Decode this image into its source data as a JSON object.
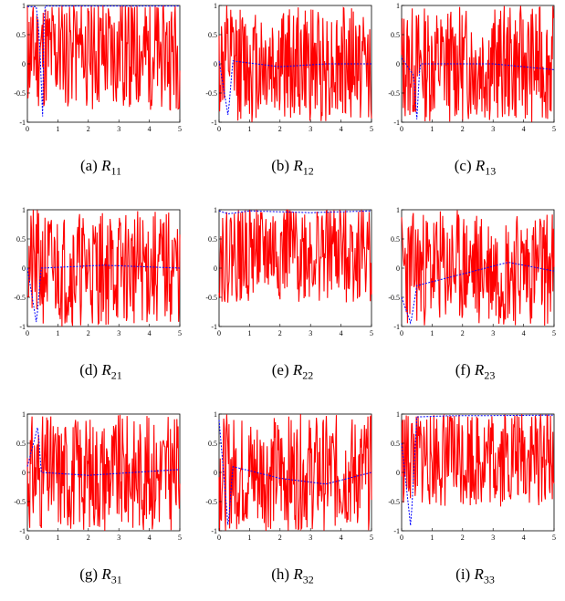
{
  "chart_data": [
    {
      "id": "a",
      "type": "line",
      "caption_label": "(a)",
      "caption_var": "R",
      "caption_sub": "11",
      "x_ticks": [
        "0",
        "1",
        "2",
        "3",
        "4",
        "5"
      ],
      "y_ticks": [
        "-1",
        "-0.5",
        "0",
        "0.5",
        "1"
      ],
      "xlim": [
        0,
        5
      ],
      "ylim": [
        -1,
        1
      ],
      "series": [
        {
          "color": "#ff0000",
          "style": "solid",
          "mean": 0.2,
          "amp": 1.0,
          "seed": 11
        },
        {
          "color": "#0000ff",
          "style": "dashed",
          "baseline": [
            [
              0,
              0.98
            ],
            [
              0.3,
              0.98
            ],
            [
              0.4,
              0.4
            ],
            [
              0.5,
              -0.9
            ],
            [
              0.55,
              0.99
            ],
            [
              5,
              0.99
            ]
          ]
        }
      ]
    },
    {
      "id": "b",
      "type": "line",
      "caption_label": "(b)",
      "caption_var": "R",
      "caption_sub": "12",
      "x_ticks": [
        "0",
        "1",
        "2",
        "3",
        "4",
        "5"
      ],
      "y_ticks": [
        "-1",
        "-0.5",
        "0",
        "0.5",
        "1"
      ],
      "xlim": [
        0,
        5
      ],
      "ylim": [
        -1,
        1
      ],
      "series": [
        {
          "color": "#ff0000",
          "style": "solid",
          "mean": 0.0,
          "amp": 1.0,
          "seed": 12
        },
        {
          "color": "#0000ff",
          "style": "dashed",
          "baseline": [
            [
              0,
              0.05
            ],
            [
              0.3,
              -0.9
            ],
            [
              0.45,
              0.05
            ],
            [
              2,
              -0.05
            ],
            [
              3.5,
              0.0
            ],
            [
              5,
              0.0
            ]
          ]
        }
      ]
    },
    {
      "id": "c",
      "type": "line",
      "caption_label": "(c)",
      "caption_var": "R",
      "caption_sub": "13",
      "x_ticks": [
        "0",
        "1",
        "2",
        "3",
        "4",
        "5"
      ],
      "y_ticks": [
        "-1",
        "-0.5",
        "0",
        "0.5",
        "1"
      ],
      "xlim": [
        0,
        5
      ],
      "ylim": [
        -1,
        1
      ],
      "series": [
        {
          "color": "#ff0000",
          "style": "solid",
          "mean": 0.0,
          "amp": 1.0,
          "seed": 13
        },
        {
          "color": "#0000ff",
          "style": "dashed",
          "baseline": [
            [
              0,
              0.1
            ],
            [
              0.4,
              -0.2
            ],
            [
              0.5,
              -0.95
            ],
            [
              0.6,
              0.0
            ],
            [
              3,
              0.0
            ],
            [
              5,
              -0.1
            ]
          ]
        }
      ]
    },
    {
      "id": "d",
      "type": "line",
      "caption_label": "(d)",
      "caption_var": "R",
      "caption_sub": "21",
      "x_ticks": [
        "0",
        "1",
        "2",
        "3",
        "4",
        "5"
      ],
      "y_ticks": [
        "-1",
        "-0.5",
        "0",
        "0.5",
        "1"
      ],
      "xlim": [
        0,
        5
      ],
      "ylim": [
        -1,
        1
      ],
      "series": [
        {
          "color": "#ff0000",
          "style": "solid",
          "mean": 0.0,
          "amp": 1.0,
          "seed": 21
        },
        {
          "color": "#0000ff",
          "style": "dashed",
          "baseline": [
            [
              0,
              0.0
            ],
            [
              0.3,
              -0.95
            ],
            [
              0.45,
              0.0
            ],
            [
              2.5,
              0.05
            ],
            [
              5,
              0.0
            ]
          ]
        }
      ]
    },
    {
      "id": "e",
      "type": "line",
      "caption_label": "(e)",
      "caption_var": "R",
      "caption_sub": "22",
      "x_ticks": [
        "0",
        "1",
        "2",
        "3",
        "4",
        "5"
      ],
      "y_ticks": [
        "-1",
        "-0.5",
        "0",
        "0.5",
        "1"
      ],
      "xlim": [
        0,
        5
      ],
      "ylim": [
        -1,
        1
      ],
      "series": [
        {
          "color": "#ff0000",
          "style": "solid",
          "mean": 0.3,
          "amp": 0.9,
          "seed": 22
        },
        {
          "color": "#0000ff",
          "style": "dashed",
          "baseline": [
            [
              0,
              0.98
            ],
            [
              0.3,
              0.93
            ],
            [
              1,
              0.98
            ],
            [
              3,
              0.95
            ],
            [
              5,
              0.98
            ]
          ]
        }
      ]
    },
    {
      "id": "f",
      "type": "line",
      "caption_label": "(f)",
      "caption_var": "R",
      "caption_sub": "23",
      "x_ticks": [
        "0",
        "1",
        "2",
        "3",
        "4",
        "5"
      ],
      "y_ticks": [
        "-1",
        "-0.5",
        "0",
        "0.5",
        "1"
      ],
      "xlim": [
        0,
        5
      ],
      "ylim": [
        -1,
        1
      ],
      "series": [
        {
          "color": "#ff0000",
          "style": "solid",
          "mean": 0.0,
          "amp": 1.0,
          "seed": 23
        },
        {
          "color": "#0000ff",
          "style": "dashed",
          "baseline": [
            [
              0,
              -0.5
            ],
            [
              0.3,
              -0.95
            ],
            [
              0.5,
              -0.3
            ],
            [
              2,
              -0.1
            ],
            [
              3.5,
              0.1
            ],
            [
              5,
              -0.05
            ]
          ]
        }
      ]
    },
    {
      "id": "g",
      "type": "line",
      "caption_label": "(g)",
      "caption_var": "R",
      "caption_sub": "31",
      "x_ticks": [
        "0",
        "1",
        "2",
        "3",
        "4",
        "5"
      ],
      "y_ticks": [
        "-1",
        "-0.5",
        "0",
        "0.5",
        "1"
      ],
      "xlim": [
        0,
        5
      ],
      "ylim": [
        -1,
        1
      ],
      "series": [
        {
          "color": "#ff0000",
          "style": "solid",
          "mean": 0.0,
          "amp": 1.0,
          "seed": 31
        },
        {
          "color": "#0000ff",
          "style": "dashed",
          "baseline": [
            [
              0,
              0.1
            ],
            [
              0.35,
              0.8
            ],
            [
              0.45,
              0.0
            ],
            [
              2,
              -0.05
            ],
            [
              5,
              0.05
            ]
          ]
        }
      ]
    },
    {
      "id": "h",
      "type": "line",
      "caption_label": "(h)",
      "caption_var": "R",
      "caption_sub": "32",
      "x_ticks": [
        "0",
        "1",
        "2",
        "3",
        "4",
        "5"
      ],
      "y_ticks": [
        "-1",
        "-0.5",
        "0",
        "0.5",
        "1"
      ],
      "xlim": [
        0,
        5
      ],
      "ylim": [
        -1,
        1
      ],
      "series": [
        {
          "color": "#ff0000",
          "style": "solid",
          "mean": 0.0,
          "amp": 1.0,
          "seed": 32
        },
        {
          "color": "#0000ff",
          "style": "dashed",
          "baseline": [
            [
              0,
              0.9
            ],
            [
              0.3,
              -0.95
            ],
            [
              0.45,
              0.1
            ],
            [
              2,
              -0.1
            ],
            [
              3.5,
              -0.2
            ],
            [
              5,
              0.0
            ]
          ]
        }
      ]
    },
    {
      "id": "i",
      "type": "line",
      "caption_label": "(i)",
      "caption_var": "R",
      "caption_sub": "33",
      "x_ticks": [
        "0",
        "1",
        "2",
        "3",
        "4",
        "5"
      ],
      "y_ticks": [
        "-1",
        "-0.5",
        "0",
        "0.5",
        "1"
      ],
      "xlim": [
        0,
        5
      ],
      "ylim": [
        -1,
        1
      ],
      "series": [
        {
          "color": "#ff0000",
          "style": "solid",
          "mean": 0.3,
          "amp": 0.9,
          "seed": 33
        },
        {
          "color": "#0000ff",
          "style": "dashed",
          "baseline": [
            [
              0,
              0.5
            ],
            [
              0.3,
              -0.95
            ],
            [
              0.5,
              0.95
            ],
            [
              1.5,
              0.97
            ],
            [
              5,
              0.98
            ]
          ]
        }
      ]
    }
  ]
}
